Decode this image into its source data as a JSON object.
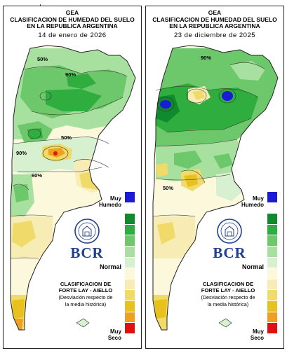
{
  "panels": [
    {
      "org": "GEA",
      "title_line1": "CLASIFICACION DE HUMEDAD DEL SUELO",
      "title_line2": "EN LA REPUBLICA ARGENTINA",
      "date": "14 de enero de 2026",
      "contour_labels": [
        "50%",
        "90%",
        "50%",
        "90%",
        "60%"
      ]
    },
    {
      "org": "GEA",
      "title_line1": "CLASIFICACION DE HUMEDAD DEL SUELO",
      "title_line2": "EN LA REPUBLICA ARGENTINA",
      "date": "23 de diciembre de 2025",
      "contour_labels": [
        "90%",
        "50%"
      ]
    }
  ],
  "legend": {
    "top_label_line1": "Muy",
    "top_label_line2": "Humedo",
    "mid_label": "Normal",
    "bottom_label_line1": "Muy",
    "bottom_label_line2": "Seco",
    "classes": [
      "#1b1bd6",
      "#ffffff",
      "#0f8a2c",
      "#2fad3f",
      "#6cc86a",
      "#a8e0a0",
      "#d6f0d0",
      "#fbf8dc",
      "#f6ecb4",
      "#efda6a",
      "#e8c21a",
      "#f0a020",
      "#e01010"
    ]
  },
  "method": {
    "line1": "CLASIFICACION DE",
    "line2": "FORTE LAY - AIELLO",
    "line3": "(Desviación respecto de",
    "line4": "la media histórica)"
  },
  "logo": {
    "text": "BCR",
    "seal_color": "#1f3f8f"
  }
}
